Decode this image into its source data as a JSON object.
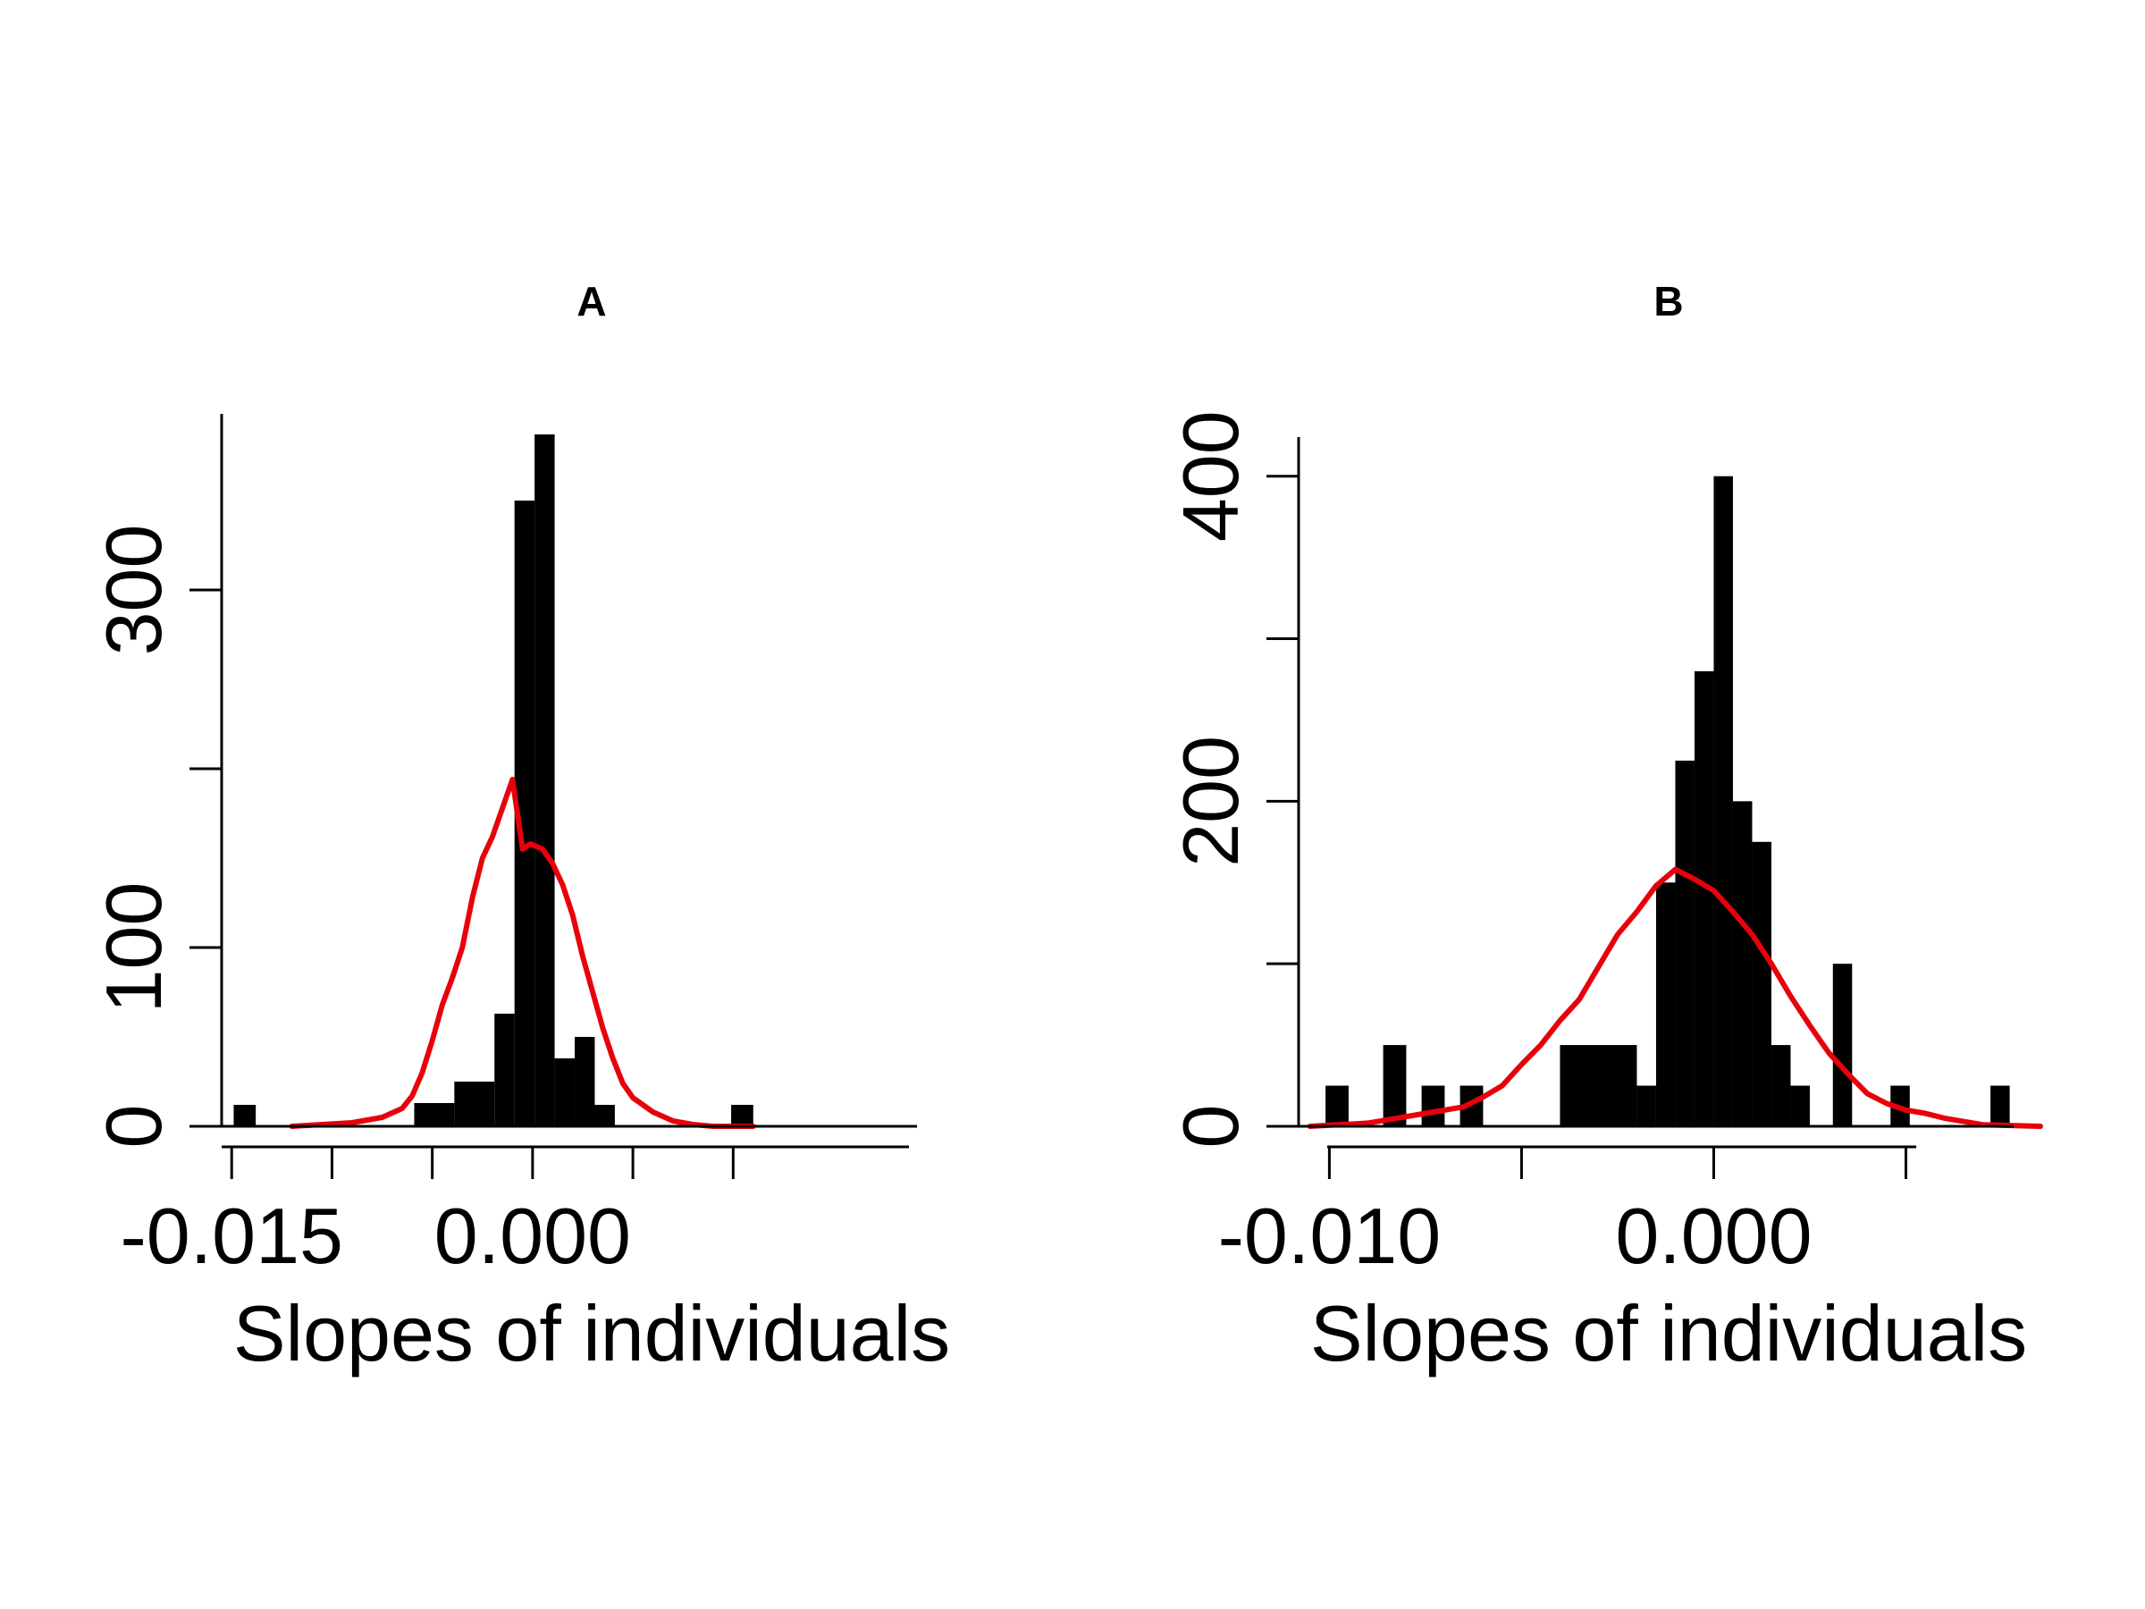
{
  "chart_data": [
    {
      "type": "bar",
      "title": "A",
      "xlabel": "Slopes of individuals",
      "ylabel": "",
      "xlim": [
        -0.0155,
        0.0205
      ],
      "ylim": [
        0,
        400
      ],
      "x_ticks": [
        -0.015,
        -0.01,
        -0.005,
        0.0,
        0.005,
        0.01
      ],
      "x_tick_labels": [
        "-0.015",
        "",
        "",
        "0.000",
        "",
        ""
      ],
      "y_ticks": [
        0,
        100,
        200,
        300,
        400
      ],
      "y_tick_labels": [
        "0",
        "100",
        "",
        "300",
        ""
      ],
      "bins": [
        {
          "x0": -0.0149,
          "x1": -0.0138,
          "count": 12
        },
        {
          "x0": -0.0059,
          "x1": -0.0039,
          "count": 13
        },
        {
          "x0": -0.0039,
          "x1": -0.0019,
          "count": 25
        },
        {
          "x0": -0.0019,
          "x1": -0.0009,
          "count": 63
        },
        {
          "x0": -0.0009,
          "x1": 0.0001,
          "count": 350
        },
        {
          "x0": 0.0001,
          "x1": 0.0011,
          "count": 387
        },
        {
          "x0": 0.0011,
          "x1": 0.0021,
          "count": 38
        },
        {
          "x0": 0.0021,
          "x1": 0.0031,
          "count": 50
        },
        {
          "x0": 0.0031,
          "x1": 0.0041,
          "count": 12
        },
        {
          "x0": 0.0099,
          "x1": 0.011,
          "count": 12
        }
      ],
      "density_curve": {
        "name": "",
        "x": [
          -0.012,
          -0.0105,
          -0.009,
          -0.0075,
          -0.0065,
          -0.006,
          -0.0055,
          -0.005,
          -0.0045,
          -0.004,
          -0.0035,
          -0.003,
          -0.0025,
          -0.002,
          -0.0015,
          -0.001,
          -0.0005,
          -0.0001,
          0.0005,
          0.001,
          0.0015,
          0.002,
          0.0025,
          0.003,
          0.0035,
          0.004,
          0.0045,
          0.005,
          0.006,
          0.007,
          0.008,
          0.009,
          0.011
        ],
        "y": [
          0,
          1,
          2,
          5,
          10,
          17,
          30,
          48,
          68,
          83,
          100,
          128,
          150,
          162,
          178,
          194,
          155,
          158,
          155,
          147,
          135,
          118,
          95,
          75,
          55,
          38,
          24,
          16,
          8,
          3,
          1,
          0,
          0
        ]
      }
    },
    {
      "type": "bar",
      "title": "B",
      "xlabel": "Slopes of individuals",
      "ylabel": "",
      "xlim": [
        -0.0108,
        0.0085
      ],
      "ylim": [
        0,
        440
      ],
      "x_ticks": [
        -0.01,
        -0.005,
        0.0,
        0.005
      ],
      "x_tick_labels": [
        "-0.010",
        "",
        "0.000",
        ""
      ],
      "y_ticks": [
        0,
        100,
        200,
        300,
        400
      ],
      "y_tick_labels": [
        "0",
        "",
        "200",
        "",
        "400"
      ],
      "bins": [
        {
          "x0": -0.0101,
          "x1": -0.0095,
          "count": 25
        },
        {
          "x0": -0.0086,
          "x1": -0.008,
          "count": 50
        },
        {
          "x0": -0.0076,
          "x1": -0.007,
          "count": 25
        },
        {
          "x0": -0.0066,
          "x1": -0.006,
          "count": 25
        },
        {
          "x0": -0.004,
          "x1": -0.002,
          "count": 50
        },
        {
          "x0": -0.002,
          "x1": -0.0015,
          "count": 25
        },
        {
          "x0": -0.0015,
          "x1": -0.001,
          "count": 150
        },
        {
          "x0": -0.001,
          "x1": -0.0005,
          "count": 225
        },
        {
          "x0": -0.0005,
          "x1": 0.0,
          "count": 280
        },
        {
          "x0": 0.0,
          "x1": 0.0005,
          "count": 400
        },
        {
          "x0": 0.0005,
          "x1": 0.001,
          "count": 200
        },
        {
          "x0": 0.001,
          "x1": 0.0015,
          "count": 175
        },
        {
          "x0": 0.0015,
          "x1": 0.002,
          "count": 50
        },
        {
          "x0": 0.002,
          "x1": 0.0025,
          "count": 25
        },
        {
          "x0": 0.0031,
          "x1": 0.0036,
          "count": 100
        },
        {
          "x0": 0.0046,
          "x1": 0.0051,
          "count": 25
        },
        {
          "x0": 0.0072,
          "x1": 0.0077,
          "count": 25
        }
      ],
      "density_curve": {
        "name": "",
        "x": [
          -0.0105,
          -0.009,
          -0.0075,
          -0.0065,
          -0.006,
          -0.0055,
          -0.005,
          -0.0045,
          -0.004,
          -0.0035,
          -0.003,
          -0.0025,
          -0.002,
          -0.0015,
          -0.001,
          -0.0005,
          0.0,
          0.0005,
          0.001,
          0.0015,
          0.002,
          0.0025,
          0.003,
          0.0035,
          0.004,
          0.0045,
          0.005,
          0.0055,
          0.006,
          0.007,
          0.0085
        ],
        "y": [
          0,
          2,
          8,
          12,
          18,
          25,
          38,
          50,
          65,
          78,
          98,
          118,
          132,
          148,
          158,
          152,
          145,
          132,
          118,
          100,
          80,
          62,
          45,
          32,
          20,
          14,
          10,
          8,
          5,
          1,
          0
        ]
      }
    }
  ]
}
